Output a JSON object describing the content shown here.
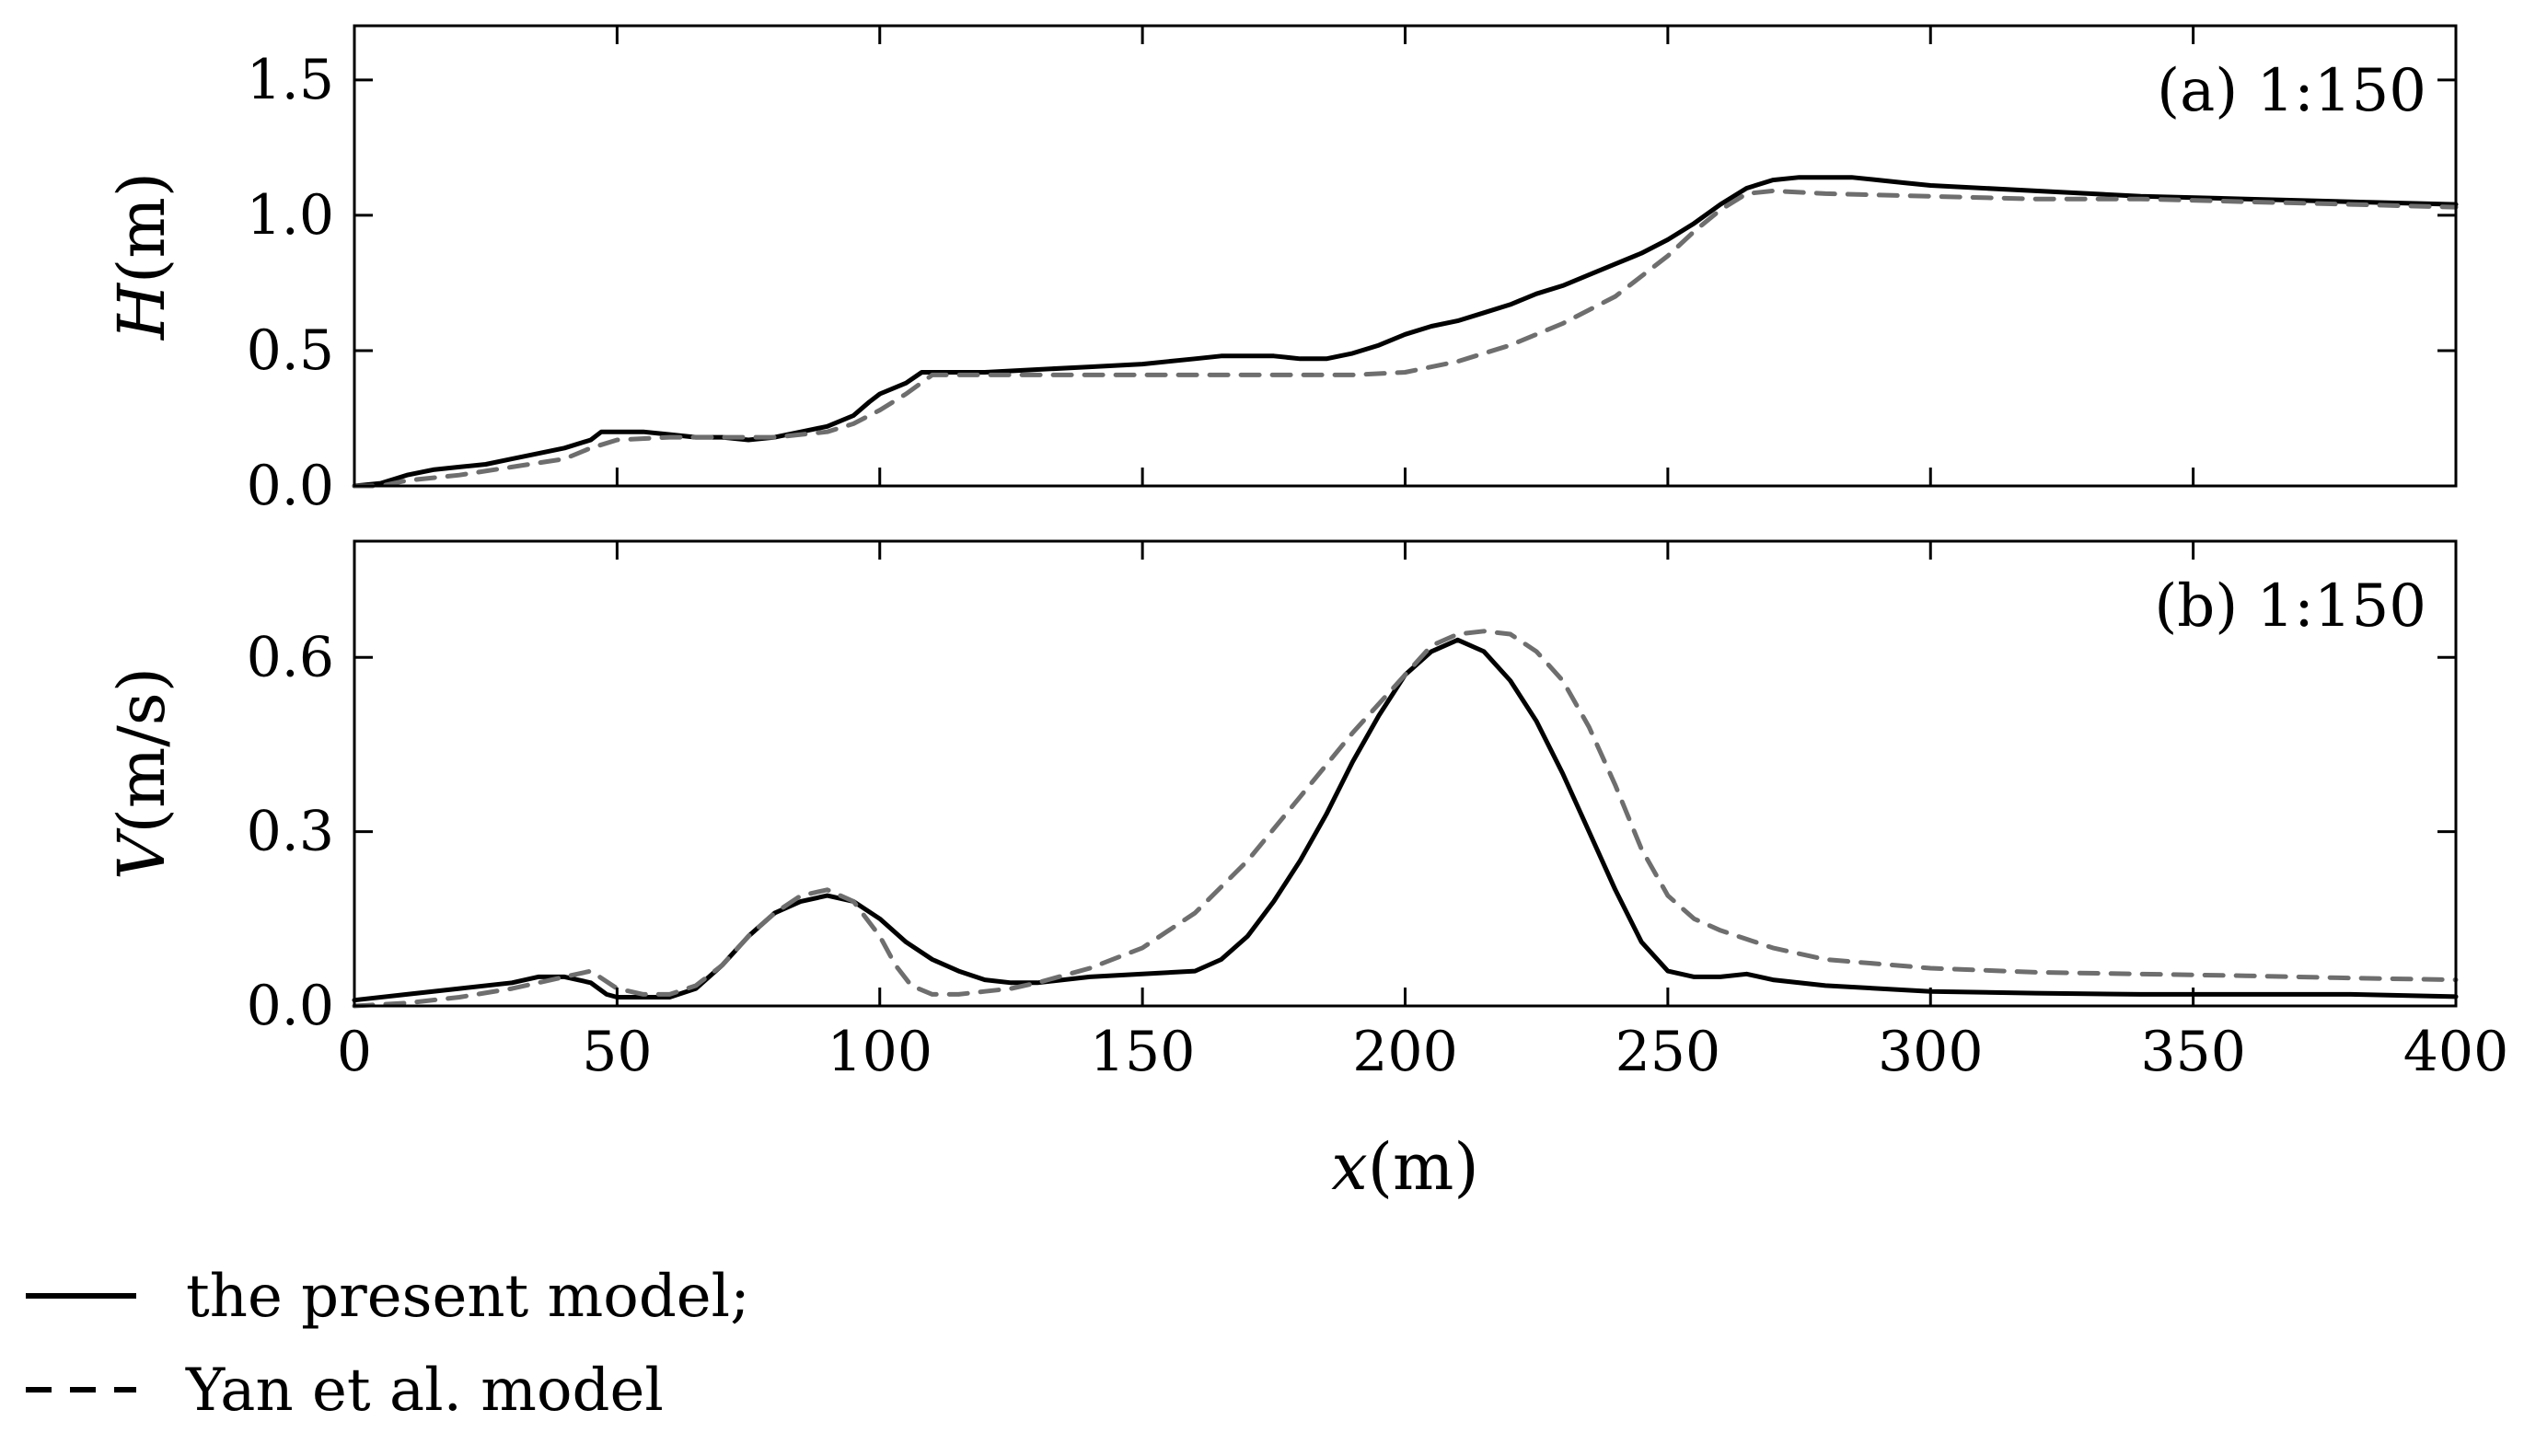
{
  "chart_data": [
    {
      "type": "line",
      "panel_label": "(a) 1:150",
      "ylabel_var": "H",
      "ylabel_unit": "(m)",
      "xlim": [
        0,
        400
      ],
      "ylim": [
        0,
        1.7
      ],
      "xticks": [
        0,
        50,
        100,
        150,
        200,
        250,
        300,
        350,
        400
      ],
      "yticks": [
        0.0,
        0.5,
        1.0,
        1.5
      ],
      "yticklabels": [
        "0.0",
        "0.5",
        "1.0",
        "1.5"
      ],
      "show_xticklabels": false,
      "series": [
        {
          "name": "the present model;",
          "style": "solid",
          "color": "#000000",
          "x": [
            0,
            5,
            10,
            15,
            20,
            25,
            30,
            35,
            40,
            45,
            47,
            50,
            55,
            60,
            65,
            70,
            75,
            80,
            85,
            90,
            95,
            98,
            100,
            105,
            108,
            110,
            120,
            130,
            140,
            150,
            155,
            160,
            165,
            170,
            175,
            180,
            185,
            190,
            195,
            200,
            205,
            210,
            215,
            220,
            225,
            230,
            235,
            240,
            245,
            250,
            255,
            260,
            265,
            270,
            275,
            280,
            285,
            290,
            295,
            300,
            320,
            340,
            360,
            380,
            400
          ],
          "y": [
            0,
            0.01,
            0.04,
            0.06,
            0.07,
            0.08,
            0.1,
            0.12,
            0.14,
            0.17,
            0.2,
            0.2,
            0.2,
            0.19,
            0.18,
            0.18,
            0.17,
            0.18,
            0.2,
            0.22,
            0.26,
            0.31,
            0.34,
            0.38,
            0.42,
            0.42,
            0.42,
            0.43,
            0.44,
            0.45,
            0.46,
            0.47,
            0.48,
            0.48,
            0.48,
            0.47,
            0.47,
            0.49,
            0.52,
            0.56,
            0.59,
            0.61,
            0.64,
            0.67,
            0.71,
            0.74,
            0.78,
            0.82,
            0.86,
            0.91,
            0.97,
            1.04,
            1.1,
            1.13,
            1.14,
            1.14,
            1.14,
            1.13,
            1.12,
            1.11,
            1.09,
            1.07,
            1.06,
            1.05,
            1.04
          ]
        },
        {
          "name": "Yan et al. model",
          "style": "dashed",
          "color": "#6e6e6e",
          "x": [
            0,
            5,
            10,
            20,
            30,
            40,
            45,
            50,
            60,
            70,
            80,
            90,
            95,
            100,
            105,
            110,
            120,
            140,
            160,
            180,
            190,
            200,
            210,
            220,
            230,
            240,
            250,
            255,
            260,
            265,
            270,
            280,
            300,
            320,
            340,
            360,
            380,
            400
          ],
          "y": [
            0,
            0,
            0.02,
            0.04,
            0.07,
            0.1,
            0.14,
            0.17,
            0.18,
            0.18,
            0.18,
            0.2,
            0.23,
            0.28,
            0.34,
            0.41,
            0.41,
            0.41,
            0.41,
            0.41,
            0.41,
            0.42,
            0.46,
            0.52,
            0.6,
            0.7,
            0.85,
            0.94,
            1.02,
            1.08,
            1.09,
            1.08,
            1.07,
            1.06,
            1.06,
            1.05,
            1.04,
            1.03
          ]
        }
      ]
    },
    {
      "type": "line",
      "panel_label": "(b) 1:150",
      "ylabel_var": "V",
      "ylabel_unit": "(m/s)",
      "xlabel_var": "x",
      "xlabel_unit": "(m)",
      "xlim": [
        0,
        400
      ],
      "ylim": [
        0,
        0.8
      ],
      "xticks": [
        0,
        50,
        100,
        150,
        200,
        250,
        300,
        350,
        400
      ],
      "xticklabels": [
        "0",
        "50",
        "100",
        "150",
        "200",
        "250",
        "300",
        "350",
        "400"
      ],
      "yticks": [
        0.0,
        0.3,
        0.6
      ],
      "yticklabels": [
        "0.0",
        "0.3",
        "0.6"
      ],
      "show_xticklabels": true,
      "series": [
        {
          "name": "the present model;",
          "style": "solid",
          "color": "#000000",
          "x": [
            0,
            10,
            20,
            30,
            35,
            40,
            45,
            48,
            50,
            55,
            60,
            65,
            70,
            75,
            80,
            85,
            90,
            95,
            100,
            105,
            110,
            115,
            120,
            125,
            130,
            140,
            150,
            160,
            165,
            170,
            175,
            180,
            185,
            190,
            195,
            200,
            205,
            210,
            215,
            220,
            225,
            230,
            235,
            240,
            245,
            250,
            255,
            260,
            265,
            270,
            280,
            300,
            320,
            340,
            360,
            380,
            400
          ],
          "y": [
            0.01,
            0.02,
            0.03,
            0.04,
            0.05,
            0.05,
            0.04,
            0.02,
            0.015,
            0.015,
            0.015,
            0.03,
            0.07,
            0.12,
            0.16,
            0.18,
            0.19,
            0.18,
            0.15,
            0.11,
            0.08,
            0.06,
            0.045,
            0.04,
            0.04,
            0.05,
            0.055,
            0.06,
            0.08,
            0.12,
            0.18,
            0.25,
            0.33,
            0.42,
            0.5,
            0.57,
            0.61,
            0.63,
            0.61,
            0.56,
            0.49,
            0.4,
            0.3,
            0.2,
            0.11,
            0.06,
            0.05,
            0.05,
            0.055,
            0.045,
            0.035,
            0.025,
            0.022,
            0.02,
            0.02,
            0.02,
            0.016
          ]
        },
        {
          "name": "Yan et al. model",
          "style": "dashed",
          "color": "#6e6e6e",
          "x": [
            0,
            10,
            20,
            30,
            35,
            40,
            45,
            50,
            55,
            60,
            65,
            70,
            75,
            80,
            85,
            90,
            95,
            100,
            103,
            106,
            110,
            115,
            120,
            125,
            130,
            140,
            150,
            160,
            170,
            180,
            190,
            200,
            205,
            210,
            215,
            220,
            225,
            230,
            235,
            240,
            245,
            250,
            255,
            260,
            270,
            280,
            300,
            320,
            340,
            360,
            380,
            400
          ],
          "y": [
            0,
            0.005,
            0.015,
            0.03,
            0.04,
            0.05,
            0.06,
            0.03,
            0.02,
            0.02,
            0.035,
            0.07,
            0.12,
            0.16,
            0.19,
            0.2,
            0.18,
            0.12,
            0.07,
            0.035,
            0.02,
            0.02,
            0.025,
            0.03,
            0.04,
            0.065,
            0.1,
            0.16,
            0.25,
            0.36,
            0.47,
            0.57,
            0.62,
            0.64,
            0.645,
            0.64,
            0.61,
            0.56,
            0.48,
            0.38,
            0.27,
            0.19,
            0.15,
            0.13,
            0.1,
            0.08,
            0.065,
            0.058,
            0.055,
            0.052,
            0.048,
            0.045
          ]
        }
      ]
    }
  ],
  "legend": {
    "items": [
      {
        "label": "the present model;",
        "style": "solid",
        "color": "#000000"
      },
      {
        "label": "Yan et al. model",
        "style": "dashed",
        "color": "#6e6e6e"
      }
    ]
  }
}
